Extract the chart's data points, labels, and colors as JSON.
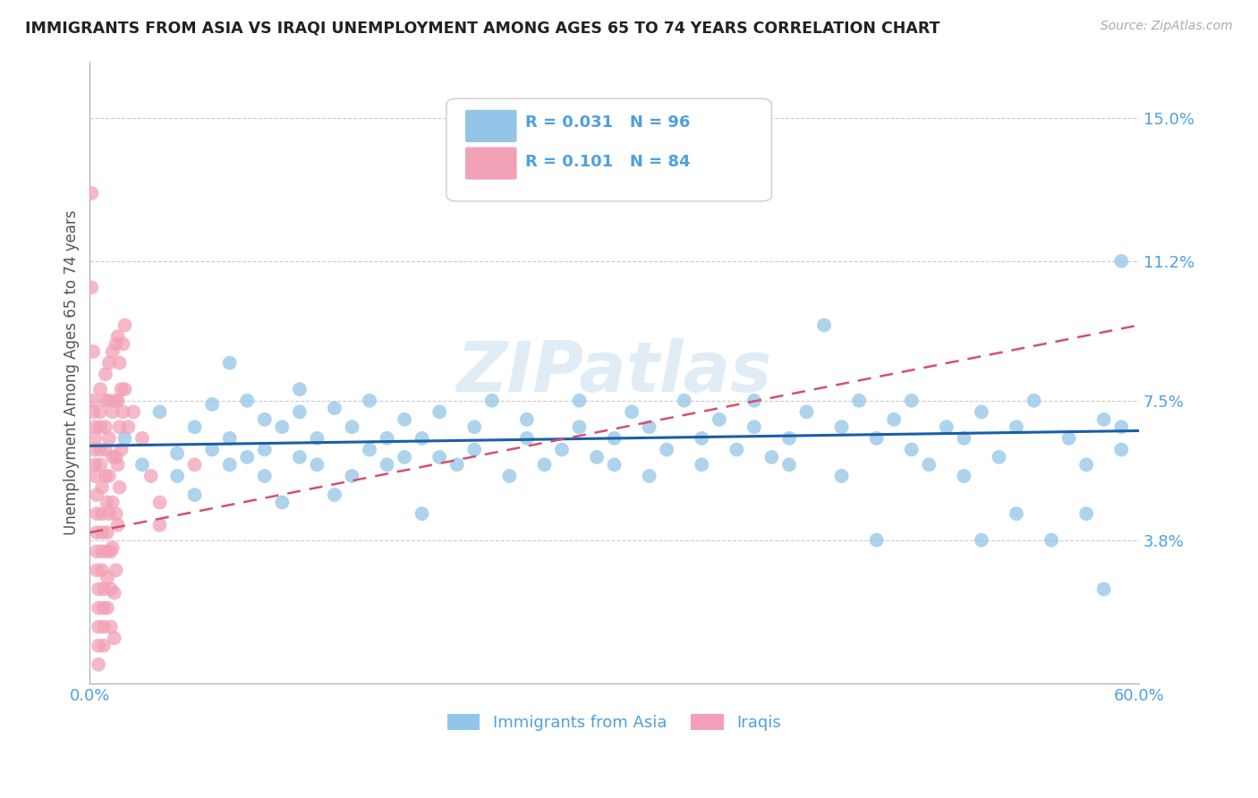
{
  "title": "IMMIGRANTS FROM ASIA VS IRAQI UNEMPLOYMENT AMONG AGES 65 TO 74 YEARS CORRELATION CHART",
  "source": "Source: ZipAtlas.com",
  "ylabel": "Unemployment Among Ages 65 to 74 years",
  "xlim": [
    0.0,
    0.6
  ],
  "ylim": [
    0.0,
    0.165
  ],
  "xticks": [
    0.0,
    0.1,
    0.2,
    0.3,
    0.4,
    0.5,
    0.6
  ],
  "xticklabels": [
    "0.0%",
    "",
    "",
    "",
    "",
    "",
    "60.0%"
  ],
  "ytick_positions": [
    0.038,
    0.075,
    0.112,
    0.15
  ],
  "yticklabels": [
    "3.8%",
    "7.5%",
    "11.2%",
    "15.0%"
  ],
  "grid_color": "#cccccc",
  "background_color": "#ffffff",
  "watermark": "ZIPatlas",
  "blue_R": "0.031",
  "blue_N": "96",
  "pink_R": "0.101",
  "pink_N": "84",
  "blue_color": "#92c5e8",
  "pink_color": "#f2a0b8",
  "blue_line_color": "#1a5fa8",
  "pink_line_color": "#d45070",
  "legend_label_blue": "Immigrants from Asia",
  "legend_label_pink": "Iraqis",
  "blue_scatter": [
    [
      0.02,
      0.065
    ],
    [
      0.03,
      0.058
    ],
    [
      0.04,
      0.072
    ],
    [
      0.05,
      0.061
    ],
    [
      0.05,
      0.055
    ],
    [
      0.06,
      0.068
    ],
    [
      0.06,
      0.05
    ],
    [
      0.07,
      0.062
    ],
    [
      0.07,
      0.074
    ],
    [
      0.08,
      0.058
    ],
    [
      0.08,
      0.065
    ],
    [
      0.08,
      0.085
    ],
    [
      0.09,
      0.06
    ],
    [
      0.09,
      0.075
    ],
    [
      0.1,
      0.055
    ],
    [
      0.1,
      0.062
    ],
    [
      0.1,
      0.07
    ],
    [
      0.11,
      0.048
    ],
    [
      0.11,
      0.068
    ],
    [
      0.12,
      0.06
    ],
    [
      0.12,
      0.072
    ],
    [
      0.12,
      0.078
    ],
    [
      0.13,
      0.065
    ],
    [
      0.13,
      0.058
    ],
    [
      0.14,
      0.073
    ],
    [
      0.14,
      0.05
    ],
    [
      0.15,
      0.068
    ],
    [
      0.15,
      0.055
    ],
    [
      0.16,
      0.062
    ],
    [
      0.16,
      0.075
    ],
    [
      0.17,
      0.058
    ],
    [
      0.17,
      0.065
    ],
    [
      0.18,
      0.06
    ],
    [
      0.18,
      0.07
    ],
    [
      0.19,
      0.045
    ],
    [
      0.19,
      0.065
    ],
    [
      0.2,
      0.06
    ],
    [
      0.2,
      0.072
    ],
    [
      0.21,
      0.058
    ],
    [
      0.22,
      0.068
    ],
    [
      0.22,
      0.062
    ],
    [
      0.23,
      0.075
    ],
    [
      0.24,
      0.055
    ],
    [
      0.25,
      0.065
    ],
    [
      0.25,
      0.07
    ],
    [
      0.26,
      0.058
    ],
    [
      0.27,
      0.062
    ],
    [
      0.28,
      0.068
    ],
    [
      0.28,
      0.075
    ],
    [
      0.29,
      0.06
    ],
    [
      0.3,
      0.065
    ],
    [
      0.3,
      0.058
    ],
    [
      0.31,
      0.072
    ],
    [
      0.32,
      0.068
    ],
    [
      0.32,
      0.055
    ],
    [
      0.33,
      0.062
    ],
    [
      0.34,
      0.075
    ],
    [
      0.35,
      0.065
    ],
    [
      0.35,
      0.058
    ],
    [
      0.36,
      0.07
    ],
    [
      0.37,
      0.062
    ],
    [
      0.38,
      0.068
    ],
    [
      0.38,
      0.075
    ],
    [
      0.39,
      0.06
    ],
    [
      0.4,
      0.065
    ],
    [
      0.4,
      0.058
    ],
    [
      0.41,
      0.072
    ],
    [
      0.42,
      0.095
    ],
    [
      0.43,
      0.068
    ],
    [
      0.43,
      0.055
    ],
    [
      0.44,
      0.075
    ],
    [
      0.45,
      0.065
    ],
    [
      0.45,
      0.038
    ],
    [
      0.46,
      0.07
    ],
    [
      0.47,
      0.062
    ],
    [
      0.47,
      0.075
    ],
    [
      0.48,
      0.058
    ],
    [
      0.49,
      0.068
    ],
    [
      0.5,
      0.065
    ],
    [
      0.5,
      0.055
    ],
    [
      0.51,
      0.072
    ],
    [
      0.51,
      0.038
    ],
    [
      0.52,
      0.06
    ],
    [
      0.53,
      0.068
    ],
    [
      0.53,
      0.045
    ],
    [
      0.54,
      0.075
    ],
    [
      0.55,
      0.038
    ],
    [
      0.56,
      0.065
    ],
    [
      0.57,
      0.058
    ],
    [
      0.57,
      0.045
    ],
    [
      0.58,
      0.07
    ],
    [
      0.58,
      0.025
    ],
    [
      0.59,
      0.062
    ],
    [
      0.59,
      0.068
    ],
    [
      0.59,
      0.112
    ]
  ],
  "pink_scatter": [
    [
      0.001,
      0.13
    ],
    [
      0.001,
      0.105
    ],
    [
      0.002,
      0.088
    ],
    [
      0.002,
      0.075
    ],
    [
      0.002,
      0.072
    ],
    [
      0.003,
      0.068
    ],
    [
      0.003,
      0.065
    ],
    [
      0.003,
      0.062
    ],
    [
      0.003,
      0.058
    ],
    [
      0.003,
      0.055
    ],
    [
      0.004,
      0.05
    ],
    [
      0.004,
      0.045
    ],
    [
      0.004,
      0.04
    ],
    [
      0.004,
      0.035
    ],
    [
      0.004,
      0.03
    ],
    [
      0.005,
      0.025
    ],
    [
      0.005,
      0.02
    ],
    [
      0.005,
      0.015
    ],
    [
      0.005,
      0.01
    ],
    [
      0.005,
      0.005
    ],
    [
      0.006,
      0.078
    ],
    [
      0.006,
      0.072
    ],
    [
      0.006,
      0.068
    ],
    [
      0.006,
      0.062
    ],
    [
      0.006,
      0.058
    ],
    [
      0.007,
      0.052
    ],
    [
      0.007,
      0.045
    ],
    [
      0.007,
      0.04
    ],
    [
      0.007,
      0.035
    ],
    [
      0.007,
      0.03
    ],
    [
      0.008,
      0.025
    ],
    [
      0.008,
      0.02
    ],
    [
      0.008,
      0.015
    ],
    [
      0.008,
      0.01
    ],
    [
      0.009,
      0.082
    ],
    [
      0.009,
      0.075
    ],
    [
      0.009,
      0.068
    ],
    [
      0.009,
      0.062
    ],
    [
      0.009,
      0.055
    ],
    [
      0.01,
      0.048
    ],
    [
      0.01,
      0.04
    ],
    [
      0.01,
      0.035
    ],
    [
      0.01,
      0.028
    ],
    [
      0.01,
      0.02
    ],
    [
      0.011,
      0.085
    ],
    [
      0.011,
      0.075
    ],
    [
      0.011,
      0.065
    ],
    [
      0.011,
      0.055
    ],
    [
      0.011,
      0.045
    ],
    [
      0.012,
      0.035
    ],
    [
      0.012,
      0.025
    ],
    [
      0.012,
      0.015
    ],
    [
      0.013,
      0.088
    ],
    [
      0.013,
      0.072
    ],
    [
      0.013,
      0.06
    ],
    [
      0.013,
      0.048
    ],
    [
      0.013,
      0.036
    ],
    [
      0.014,
      0.024
    ],
    [
      0.014,
      0.012
    ],
    [
      0.015,
      0.09
    ],
    [
      0.015,
      0.075
    ],
    [
      0.015,
      0.06
    ],
    [
      0.015,
      0.045
    ],
    [
      0.015,
      0.03
    ],
    [
      0.016,
      0.092
    ],
    [
      0.016,
      0.075
    ],
    [
      0.016,
      0.058
    ],
    [
      0.016,
      0.042
    ],
    [
      0.017,
      0.085
    ],
    [
      0.017,
      0.068
    ],
    [
      0.017,
      0.052
    ],
    [
      0.018,
      0.078
    ],
    [
      0.018,
      0.062
    ],
    [
      0.019,
      0.09
    ],
    [
      0.019,
      0.072
    ],
    [
      0.02,
      0.095
    ],
    [
      0.02,
      0.078
    ],
    [
      0.022,
      0.068
    ],
    [
      0.025,
      0.072
    ],
    [
      0.03,
      0.065
    ],
    [
      0.035,
      0.055
    ],
    [
      0.04,
      0.048
    ],
    [
      0.04,
      0.042
    ],
    [
      0.06,
      0.058
    ]
  ],
  "blue_trend_x": [
    0.0,
    0.6
  ],
  "blue_trend_y": [
    0.063,
    0.067
  ],
  "pink_trend_x": [
    0.0,
    0.6
  ],
  "pink_trend_y": [
    0.04,
    0.095
  ]
}
